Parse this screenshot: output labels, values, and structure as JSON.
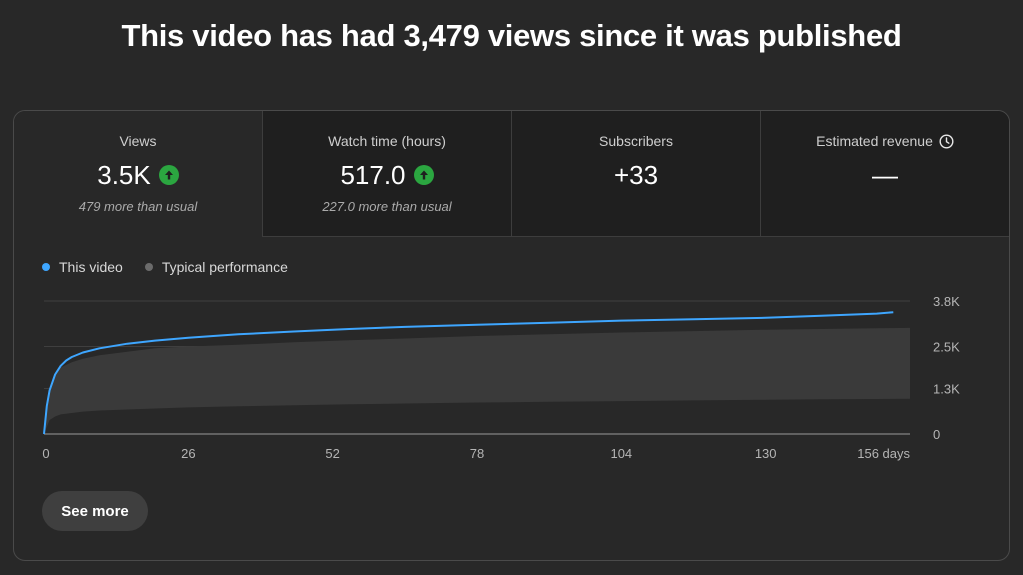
{
  "headline": "This video has had 3,479 views since it was published",
  "metrics": [
    {
      "label": "Views",
      "value": "3.5K",
      "sub": "479 more than usual",
      "trend": "up-arrow-icon",
      "active": true
    },
    {
      "label": "Watch time (hours)",
      "value": "517.0",
      "sub": "227.0 more than usual",
      "trend": "up-arrow-icon",
      "active": false
    },
    {
      "label": "Subscribers",
      "value": "+33",
      "sub": "",
      "active": false
    },
    {
      "label": "Estimated revenue",
      "value": "—",
      "sub": "",
      "info_icon": "clock-icon",
      "active": false
    }
  ],
  "legend": {
    "this_video": "This video",
    "typical": "Typical performance"
  },
  "see_more_label": "See more",
  "colors": {
    "this_video": "#3ea6ff",
    "typical_band": "#3a3a3a",
    "up": "#2ba640"
  },
  "chart_data": {
    "type": "line",
    "x_ticks": [
      0,
      26,
      52,
      78,
      104,
      130,
      156
    ],
    "x_tick_labels": [
      "0",
      "26",
      "52",
      "78",
      "104",
      "130",
      "156 days"
    ],
    "y_ticks": [
      0,
      1300,
      2500,
      3800
    ],
    "y_tick_labels": [
      "0",
      "1.3K",
      "2.5K",
      "3.8K"
    ],
    "xlim": [
      0,
      156
    ],
    "ylim": [
      0,
      3800
    ],
    "series": [
      {
        "name": "This video",
        "x": [
          0,
          0.5,
          1,
          2,
          3,
          4,
          5,
          7,
          10,
          15,
          20,
          26,
          35,
          45,
          55,
          65,
          78,
          91,
          104,
          117,
          130,
          140,
          150,
          153
        ],
        "y": [
          0,
          800,
          1250,
          1700,
          1950,
          2100,
          2200,
          2330,
          2450,
          2580,
          2670,
          2750,
          2850,
          2930,
          3000,
          3060,
          3120,
          3180,
          3240,
          3280,
          3320,
          3380,
          3440,
          3479
        ]
      }
    ],
    "band": {
      "name": "Typical performance",
      "x": [
        0,
        1,
        2,
        3,
        5,
        7,
        10,
        15,
        20,
        26,
        35,
        45,
        55,
        65,
        78,
        91,
        104,
        117,
        130,
        140,
        150,
        156
      ],
      "upper": [
        0,
        1200,
        1650,
        1900,
        2050,
        2150,
        2250,
        2350,
        2450,
        2500,
        2550,
        2620,
        2680,
        2730,
        2800,
        2850,
        2900,
        2940,
        2980,
        3000,
        3020,
        3030
      ],
      "lower": [
        0,
        400,
        500,
        560,
        600,
        640,
        670,
        700,
        730,
        760,
        790,
        820,
        850,
        870,
        900,
        920,
        940,
        960,
        980,
        990,
        1000,
        1010
      ]
    }
  }
}
